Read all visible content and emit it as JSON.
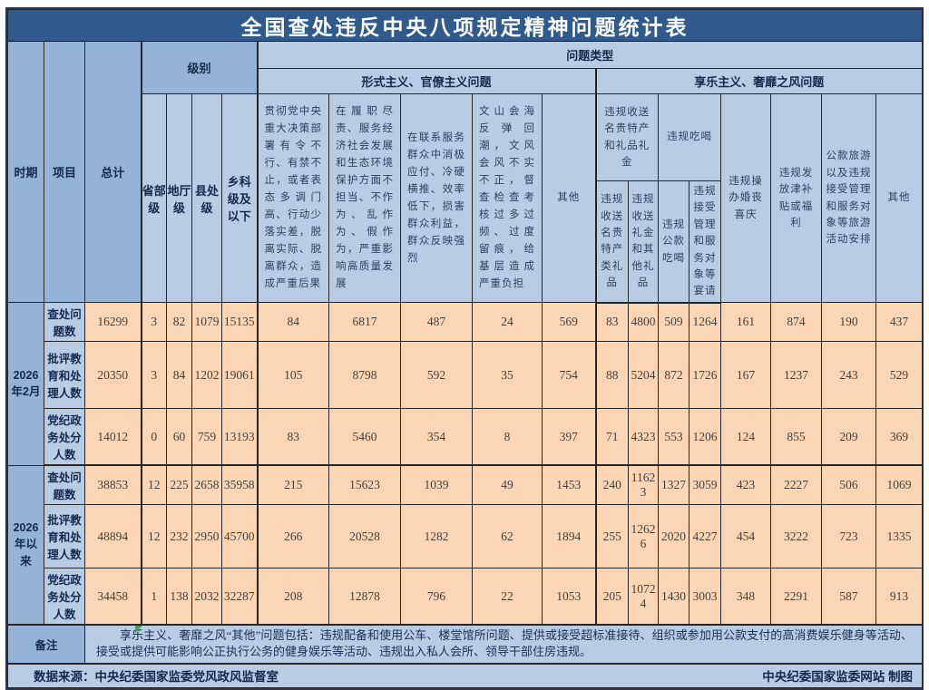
{
  "title": "全国查处违反中央八项规定精神问题统计表",
  "header": {
    "period_label": "时期",
    "item_label": "项目",
    "total_label": "总计",
    "level_label": "级别",
    "level_cols": [
      "省部级",
      "地厅级",
      "县处级",
      "乡科级及以下"
    ],
    "problem_type_label": "问题类型",
    "formalism_label": "形式主义、官僚主义问题",
    "hedonism_label": "享乐主义、奢靡之风问题",
    "formalism_cols": [
      "贯彻党中央重大决策部署有令不行、有禁不止，或者表态多调门高、行动少落实差，脱离实际、脱离群众，造成严重后果",
      "在履职尽责、服务经济社会发展和生态环境保护方面不担当、不作为、乱作为、假作为，严重影响高质量发展",
      "在联系服务群众中消极应付、冷硬横推、效率低下，损害群众利益，群众反映强烈",
      "文山会海反弹回潮，文风会风不实不正，督查检查考核过多过频、过度留痕，给基层造成严重负担",
      "其他"
    ],
    "gift_group": "违规收送名贵特产和礼品礼金",
    "gift_cols": [
      "违规收送名贵特产类礼品",
      "违规收送礼金和其他礼品"
    ],
    "dining_group": "违规吃喝",
    "dining_cols": [
      "违规公款吃喝",
      "违规接受管理和服务对象等宴请"
    ],
    "hedonism_cols": [
      "违规操办婚丧喜庆",
      "违规发放津补贴或福利",
      "公款旅游以及违规接受管理和服务对象等旅游活动安排",
      "其他"
    ]
  },
  "periods": [
    {
      "label": "2026年2月",
      "rows": [
        {
          "label": "查处问题数",
          "values": [
            16299,
            3,
            82,
            1079,
            15135,
            84,
            6817,
            487,
            24,
            569,
            83,
            4800,
            509,
            1264,
            161,
            874,
            190,
            437
          ]
        },
        {
          "label": "批评教育和处理人数",
          "values": [
            20350,
            3,
            84,
            1202,
            19061,
            105,
            8798,
            592,
            35,
            754,
            88,
            5204,
            872,
            1726,
            167,
            1237,
            243,
            529
          ]
        },
        {
          "label": "党纪政务处分人数",
          "values": [
            14012,
            0,
            60,
            759,
            13193,
            83,
            5460,
            354,
            8,
            397,
            71,
            4323,
            553,
            1206,
            124,
            855,
            209,
            369
          ]
        }
      ]
    },
    {
      "label": "2026年以来",
      "rows": [
        {
          "label": "查处问题数",
          "values": [
            38853,
            12,
            225,
            2658,
            35958,
            215,
            15623,
            1039,
            49,
            1453,
            240,
            11623,
            1327,
            3059,
            423,
            2227,
            506,
            1069
          ]
        },
        {
          "label": "批评教育和处理人数",
          "values": [
            48894,
            12,
            232,
            2950,
            45700,
            266,
            20528,
            1282,
            62,
            1894,
            255,
            12626,
            2020,
            4227,
            454,
            3222,
            723,
            1335
          ]
        },
        {
          "label": "党纪政务处分人数",
          "values": [
            34458,
            1,
            138,
            2032,
            32287,
            208,
            12878,
            796,
            22,
            1053,
            205,
            10724,
            1430,
            3003,
            348,
            2291,
            587,
            913
          ]
        }
      ]
    }
  ],
  "remark": {
    "label": "备注",
    "text": "享乐主义、奢靡之风“其他”问题包括：违规配备和使用公车、楼堂馆所问题、提供或接受超标准接待、组织或参加用公款支付的高消费娱乐健身等活动、接受或提供可能影响公正执行公务的健身娱乐等活动、违规出入私人会所、领导干部住房违规。"
  },
  "footer": {
    "source": "数据来源：中央纪委国家监委党风政风监督室",
    "credit": "中央纪委国家监委网站 制图"
  },
  "icons": {
    "error_marker": "green-corner-triangle"
  },
  "colors": {
    "title_bar": "#30598C",
    "header_medium": "#95B3D7",
    "header_light": "#B8CCE4",
    "data_fill": "#FCD5B4",
    "frame": "#1B3A64",
    "marker_green": "#3AA348"
  }
}
